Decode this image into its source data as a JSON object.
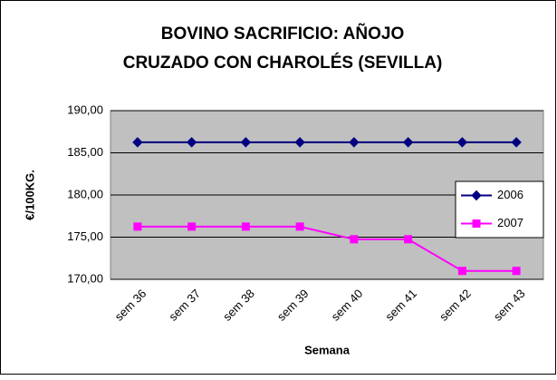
{
  "chart_data": {
    "type": "line",
    "title": [
      "BOVINO SACRIFICIO: AÑOJO",
      "CRUZADO CON CHAROLÉS (SEVILLA)"
    ],
    "x_label": "Semana",
    "y_label": "€/100KG.",
    "categories": [
      "sem 36",
      "sem 37",
      "sem 38",
      "sem 39",
      "sem 40",
      "sem 41",
      "sem 42",
      "sem 43"
    ],
    "series": [
      {
        "name": "2006",
        "color": "#000080",
        "marker": "diamond",
        "values": [
          186.25,
          186.25,
          186.25,
          186.25,
          186.25,
          186.25,
          186.25,
          186.25
        ]
      },
      {
        "name": "2007",
        "color": "#ff00ff",
        "marker": "square",
        "values": [
          176.25,
          176.25,
          176.25,
          176.25,
          174.75,
          174.75,
          171.0,
          171.0
        ]
      }
    ],
    "ylim": [
      170,
      190
    ],
    "yticks": [
      {
        "value": 170,
        "label": "170,00"
      },
      {
        "value": 175,
        "label": "175,00"
      },
      {
        "value": 180,
        "label": "180,00"
      },
      {
        "value": 185,
        "label": "185,00"
      },
      {
        "value": 190,
        "label": "190,00"
      }
    ],
    "grid": true,
    "legend": "right"
  }
}
